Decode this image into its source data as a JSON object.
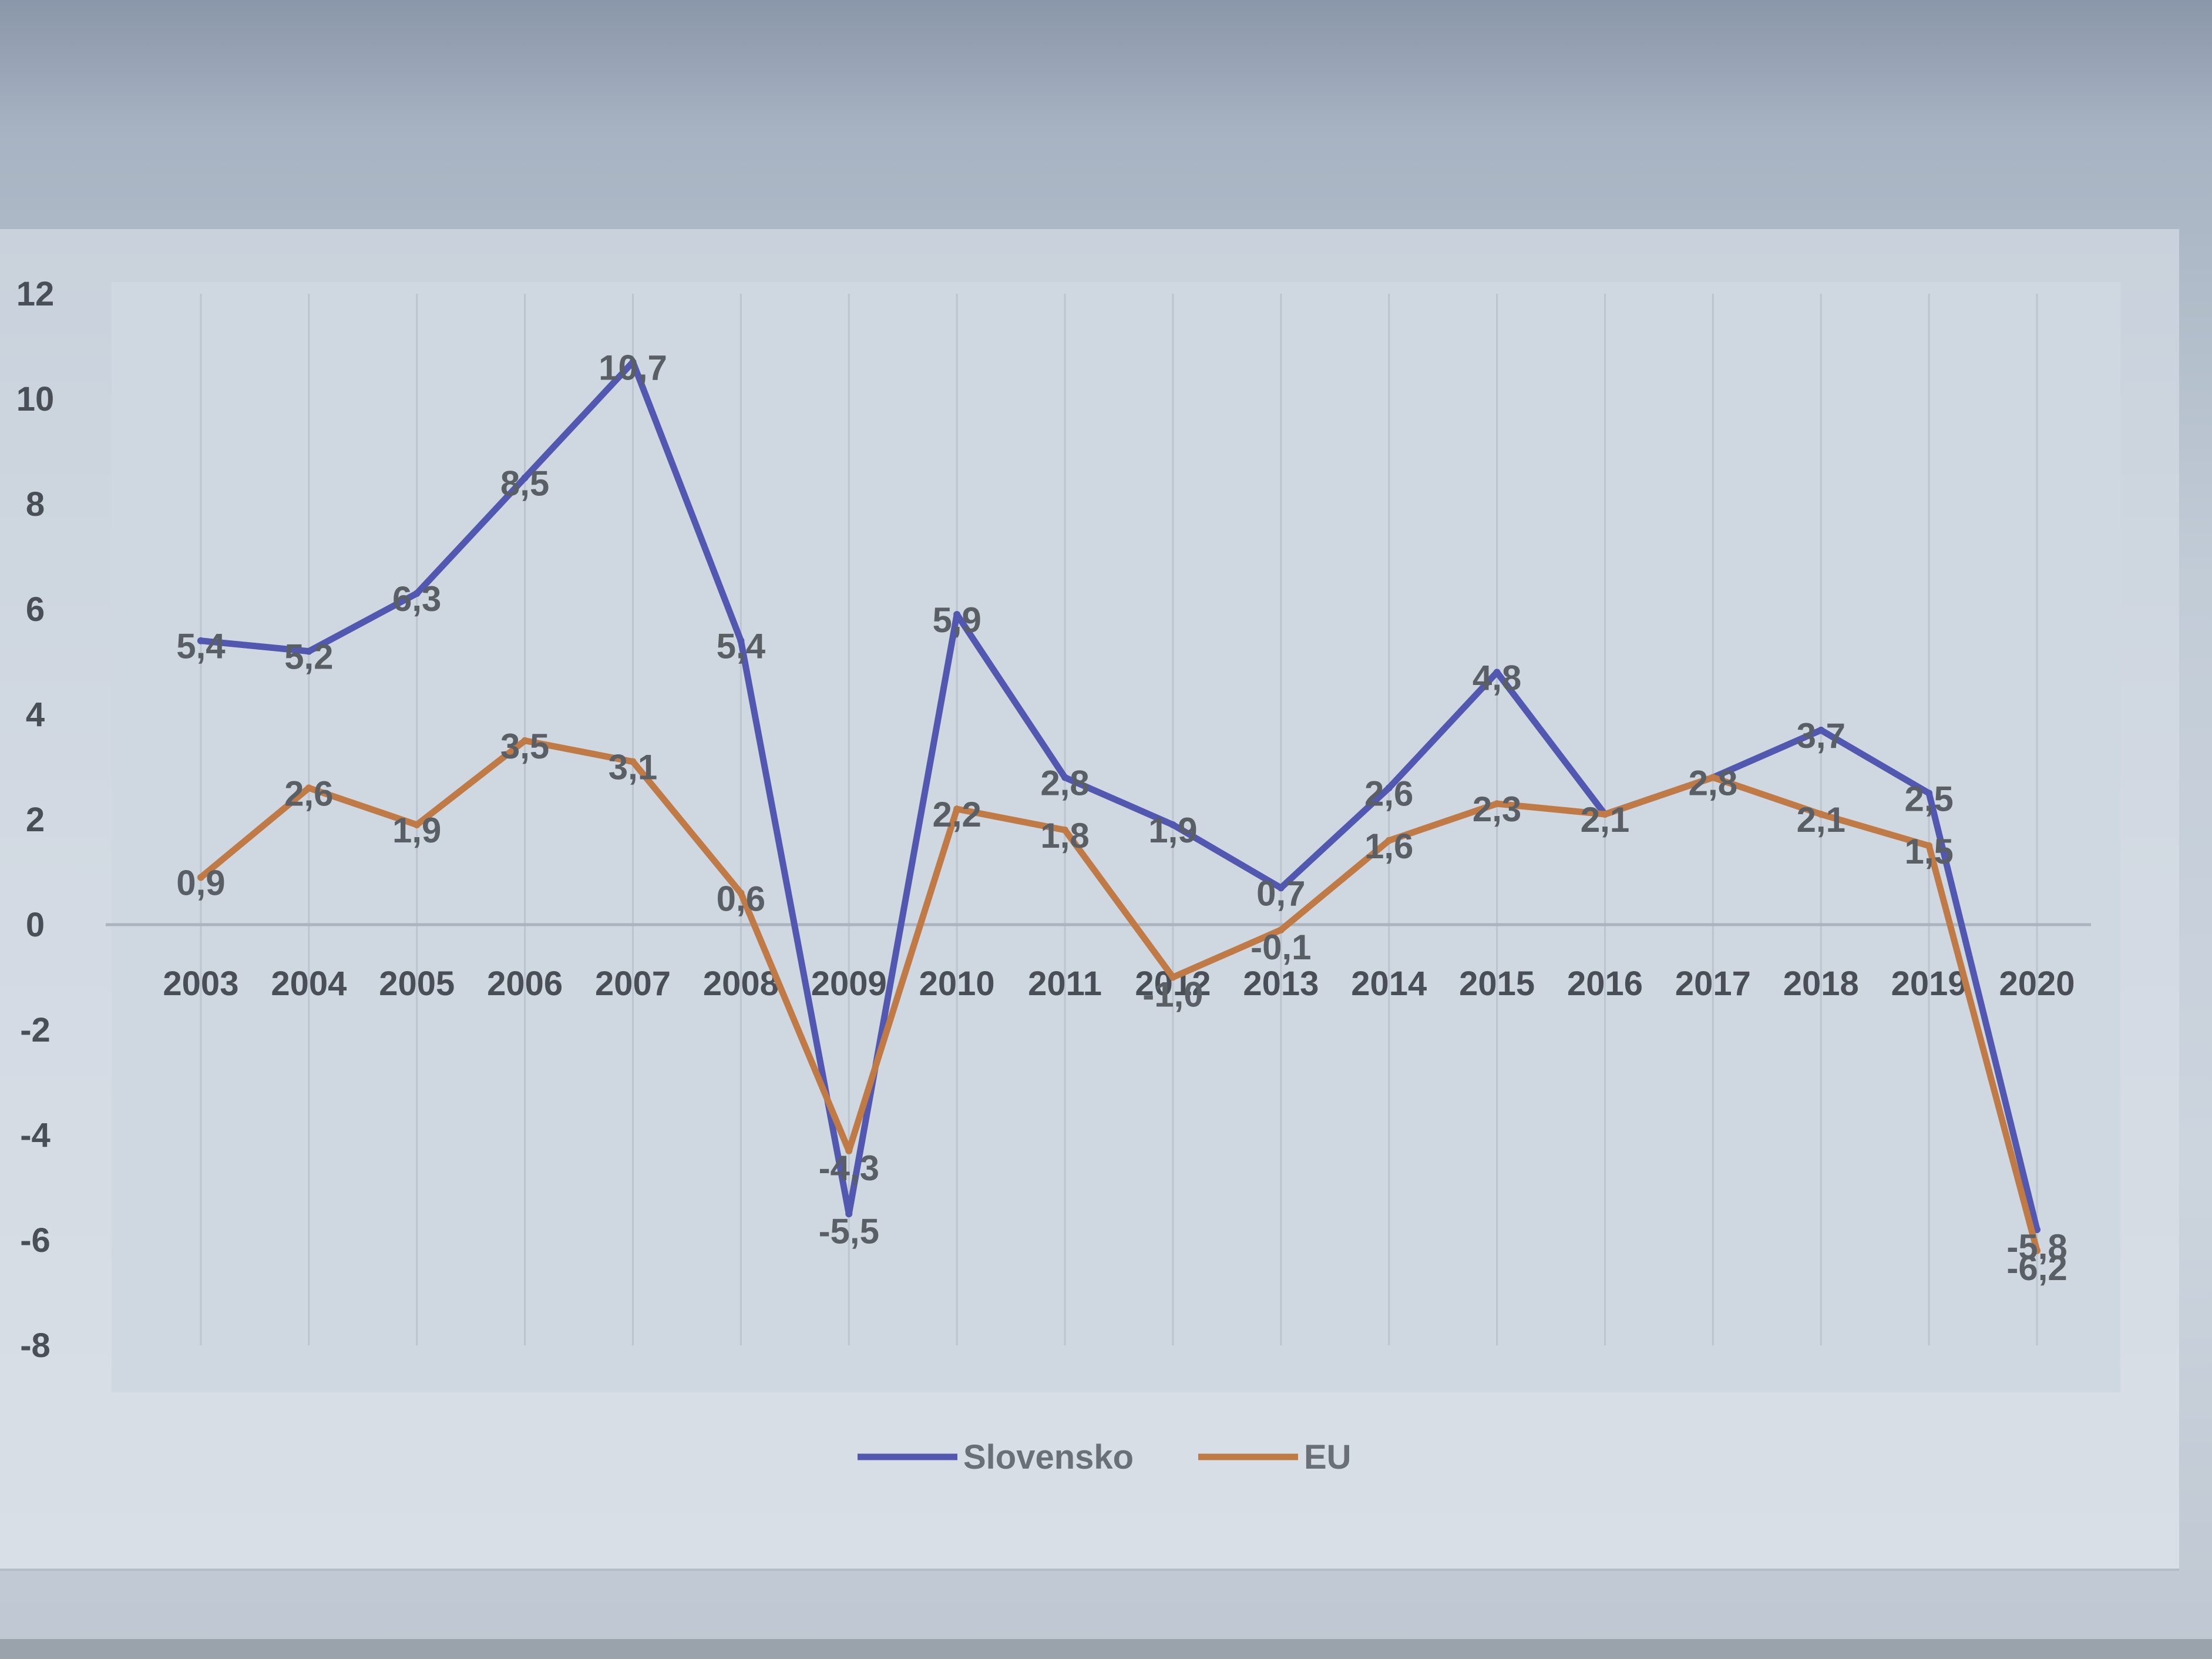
{
  "chart_data": {
    "type": "line",
    "title": "",
    "xlabel": "",
    "ylabel": "",
    "categories": [
      "2003",
      "2004",
      "2005",
      "2006",
      "2007",
      "2008",
      "2009",
      "2010",
      "2011",
      "2012",
      "2013",
      "2014",
      "2015",
      "2016",
      "2017",
      "2018",
      "2019",
      "2020"
    ],
    "ylim": [
      -8,
      12
    ],
    "yticks": [
      12,
      10,
      8,
      6,
      4,
      2,
      0,
      -2,
      -4,
      -6,
      -8
    ],
    "grid": "vertical",
    "legend_position": "bottom",
    "series": [
      {
        "name": "Slovensko",
        "color": "#5257b0",
        "values": [
          5.4,
          5.2,
          6.3,
          8.5,
          10.7,
          5.4,
          -5.5,
          5.9,
          2.8,
          1.9,
          0.7,
          2.6,
          4.8,
          2.1,
          2.8,
          3.7,
          2.5,
          -5.8
        ],
        "labels": [
          "5,4",
          "5,2",
          "6,3",
          "8,5",
          "10,7",
          "5,4",
          "-5,5",
          "5,9",
          "2,8",
          "1,9",
          "0,7",
          "2,6",
          "4,8",
          "2,1",
          "2,8",
          "3,7",
          "2,5",
          "-5,8"
        ]
      },
      {
        "name": "EU",
        "color": "#c07a45",
        "values": [
          0.9,
          2.6,
          1.9,
          3.5,
          3.1,
          0.6,
          -4.3,
          2.2,
          1.8,
          -1.0,
          -0.1,
          1.6,
          2.3,
          2.1,
          2.8,
          2.1,
          1.5,
          -6.2
        ],
        "labels": [
          "0,9",
          "2,6",
          "1,9",
          "3,5",
          "3,1",
          "0,6",
          "-4,3",
          "2,2",
          "1,8",
          "-1,0",
          "-0,1",
          "1,6",
          "2,3",
          "2,1",
          "2,8",
          "2,1",
          "1,5",
          "-6,2"
        ]
      }
    ]
  }
}
